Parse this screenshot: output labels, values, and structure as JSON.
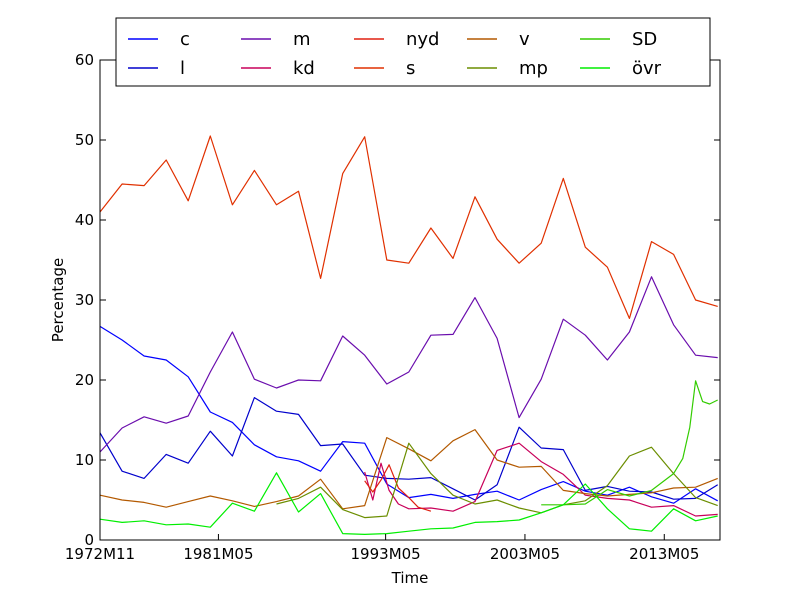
{
  "chart_data": {
    "type": "line",
    "xlabel": "Time",
    "ylabel": "Percentage",
    "ylim": [
      0,
      60
    ],
    "y_ticks": [
      0,
      10,
      20,
      30,
      40,
      50,
      60
    ],
    "x_ticks": [
      "1972M11",
      "1981M05",
      "1993M05",
      "2003M05",
      "2013M05"
    ],
    "x_range": [
      "1972M11",
      "2017M05"
    ],
    "legend_position": "top",
    "series": [
      {
        "name": "c",
        "color": "#0000ff",
        "x": [
          "1972M11",
          "1974M06",
          "1976M01",
          "1977M08",
          "1979M03",
          "1980M10",
          "1982M05",
          "1983M12",
          "1985M07",
          "1987M02",
          "1988M09",
          "1990M04",
          "1991M11",
          "1993M06",
          "1995M01",
          "1996M08",
          "1998M03",
          "1999M10",
          "2001M05",
          "2002M12",
          "2004M07",
          "2006M02",
          "2007M09",
          "2009M04",
          "2010M11",
          "2012M06",
          "2014M01",
          "2015M08",
          "2017M03"
        ],
        "values": [
          26.7,
          25.0,
          23.0,
          22.5,
          20.4,
          16.0,
          14.7,
          11.9,
          10.4,
          9.9,
          8.6,
          12.3,
          12.1,
          7.0,
          5.3,
          5.7,
          5.2,
          5.7,
          6.1,
          5.0,
          6.3,
          7.3,
          6.1,
          5.6,
          6.6,
          5.4,
          4.6,
          6.4,
          4.9
        ]
      },
      {
        "name": "l",
        "color": "#0000cc",
        "x": [
          "1972M11",
          "1974M06",
          "1976M01",
          "1977M08",
          "1979M03",
          "1980M10",
          "1982M05",
          "1983M12",
          "1985M07",
          "1987M02",
          "1988M09",
          "1990M04",
          "1991M11",
          "1993M06",
          "1995M01",
          "1996M08",
          "1998M03",
          "1999M10",
          "2001M05",
          "2002M12",
          "2004M07",
          "2006M02",
          "2007M09",
          "2009M04",
          "2010M11",
          "2012M06",
          "2014M01",
          "2015M08",
          "2017M03"
        ],
        "values": [
          13.4,
          8.6,
          7.7,
          10.7,
          9.6,
          13.6,
          10.5,
          17.8,
          16.1,
          15.7,
          11.8,
          12.0,
          8.1,
          7.7,
          7.6,
          7.8,
          6.4,
          5.0,
          6.9,
          14.1,
          11.5,
          11.3,
          6.2,
          6.7,
          6.1,
          6.0,
          5.1,
          5.2,
          6.9
        ]
      },
      {
        "name": "m",
        "color": "#6a0dad",
        "x": [
          "1972M11",
          "1974M06",
          "1976M01",
          "1977M08",
          "1979M03",
          "1980M10",
          "1982M05",
          "1983M12",
          "1985M07",
          "1987M02",
          "1988M09",
          "1990M04",
          "1991M11",
          "1993M06",
          "1995M01",
          "1996M08",
          "1998M03",
          "1999M10",
          "2001M05",
          "2002M12",
          "2004M07",
          "2006M02",
          "2007M09",
          "2009M04",
          "2010M11",
          "2012M06",
          "2014M01",
          "2015M08",
          "2017M03"
        ],
        "values": [
          11.0,
          14.0,
          15.4,
          14.6,
          15.5,
          21.0,
          26.0,
          20.1,
          19.0,
          20.0,
          19.9,
          25.5,
          23.1,
          19.5,
          21.0,
          25.6,
          25.7,
          30.3,
          25.2,
          15.3,
          20.1,
          27.6,
          25.6,
          22.5,
          26.0,
          32.9,
          26.9,
          23.1,
          22.8
        ]
      },
      {
        "name": "kd",
        "color": "#c8005a",
        "x": [
          "1991M11",
          "1992M06",
          "1993M01",
          "1993M08",
          "1994M04",
          "1995M01",
          "1996M08",
          "1998M03",
          "1999M10",
          "2001M05",
          "2002M12",
          "2004M07",
          "2006M02",
          "2007M09",
          "2009M04",
          "2010M11",
          "2012M06",
          "2014M01",
          "2015M08",
          "2017M03"
        ],
        "values": [
          8.5,
          5.0,
          9.6,
          6.2,
          4.5,
          3.9,
          4.0,
          3.6,
          4.8,
          11.2,
          12.1,
          9.8,
          8.2,
          5.6,
          5.2,
          5.0,
          4.1,
          4.3,
          3.0,
          3.2
        ]
      },
      {
        "name": "nyd",
        "color": "#e02010",
        "x": [
          "1991M11",
          "1992M06",
          "1993M01",
          "1993M08",
          "1994M04",
          "1995M01",
          "1995M09",
          "1996M08"
        ],
        "values": [
          7.4,
          6.0,
          7.5,
          9.4,
          6.5,
          5.3,
          4.1,
          3.6
        ]
      },
      {
        "name": "s",
        "color": "#e03000",
        "x": [
          "1972M11",
          "1974M06",
          "1976M01",
          "1977M08",
          "1979M03",
          "1980M10",
          "1982M05",
          "1983M12",
          "1985M07",
          "1987M02",
          "1988M09",
          "1990M04",
          "1991M11",
          "1993M06",
          "1995M01",
          "1996M08",
          "1998M03",
          "1999M10",
          "2001M05",
          "2002M12",
          "2004M07",
          "2006M02",
          "2007M09",
          "2009M04",
          "2010M11",
          "2012M06",
          "2014M01",
          "2015M08",
          "2017M03"
        ],
        "values": [
          41.0,
          44.5,
          44.3,
          47.5,
          42.4,
          50.5,
          41.9,
          46.2,
          41.9,
          43.6,
          32.7,
          45.8,
          50.4,
          35.0,
          34.6,
          39.0,
          35.2,
          42.9,
          37.6,
          34.6,
          37.1,
          45.2,
          36.6,
          34.1,
          27.7,
          37.3,
          35.7,
          30.0,
          29.2
        ]
      },
      {
        "name": "v",
        "color": "#b35900",
        "x": [
          "1972M11",
          "1974M06",
          "1976M01",
          "1977M08",
          "1979M03",
          "1980M10",
          "1982M05",
          "1983M12",
          "1985M07",
          "1987M02",
          "1988M09",
          "1990M04",
          "1991M11",
          "1993M06",
          "1995M01",
          "1996M08",
          "1998M03",
          "1999M10",
          "2001M05",
          "2002M12",
          "2004M07",
          "2006M02",
          "2007M09",
          "2009M04",
          "2010M11",
          "2012M06",
          "2014M01",
          "2015M08",
          "2017M03"
        ],
        "values": [
          5.6,
          5.0,
          4.7,
          4.1,
          4.8,
          5.5,
          4.9,
          4.2,
          4.8,
          5.5,
          7.6,
          3.9,
          4.3,
          12.8,
          11.4,
          9.9,
          12.4,
          13.8,
          10.0,
          9.1,
          9.2,
          6.2,
          5.8,
          5.5,
          5.7,
          5.9,
          6.5,
          6.6,
          7.7
        ]
      },
      {
        "name": "mp",
        "color": "#6b8e00",
        "x": [
          "1985M07",
          "1987M02",
          "1988M09",
          "1990M04",
          "1991M11",
          "1993M06",
          "1995M01",
          "1996M08",
          "1998M03",
          "1999M10",
          "2001M05",
          "2002M12",
          "2004M07",
          "2006M02",
          "2007M09",
          "2009M04",
          "2010M11",
          "2012M06",
          "2014M01",
          "2015M08",
          "2017M03"
        ],
        "values": [
          4.5,
          5.2,
          6.6,
          3.8,
          2.8,
          3.0,
          12.1,
          8.3,
          5.6,
          4.5,
          5.0,
          4.0,
          3.4,
          4.4,
          4.9,
          6.8,
          10.5,
          11.6,
          8.3,
          5.3,
          4.3
        ]
      },
      {
        "name": "SD",
        "color": "#33cc00",
        "x": [
          "2004M07",
          "2006M02",
          "2007M09",
          "2009M04",
          "2010M11",
          "2012M06",
          "2014M01",
          "2014M09",
          "2015M03",
          "2015M08",
          "2016M02",
          "2016M08",
          "2017M03"
        ],
        "values": [
          4.4,
          4.4,
          4.5,
          6.3,
          5.5,
          6.2,
          8.3,
          10.2,
          14.1,
          19.9,
          17.3,
          17.0,
          17.5
        ]
      },
      {
        "name": "övr",
        "color": "#00ee00",
        "x": [
          "1972M11",
          "1974M06",
          "1976M01",
          "1977M08",
          "1979M03",
          "1980M10",
          "1982M05",
          "1983M12",
          "1985M07",
          "1987M02",
          "1988M09",
          "1990M04",
          "1991M11",
          "1993M06",
          "1995M01",
          "1996M08",
          "1998M03",
          "1999M10",
          "2001M05",
          "2002M12",
          "2004M07",
          "2006M02",
          "2007M09",
          "2009M04",
          "2010M11",
          "2012M06",
          "2014M01",
          "2015M08",
          "2017M03"
        ],
        "values": [
          2.6,
          2.2,
          2.4,
          1.9,
          2.0,
          1.6,
          4.6,
          3.6,
          8.4,
          3.5,
          5.8,
          0.8,
          0.7,
          0.8,
          1.1,
          1.4,
          1.5,
          2.2,
          2.3,
          2.5,
          3.4,
          4.4,
          7.0,
          3.9,
          1.4,
          1.1,
          3.9,
          2.4,
          3.0
        ]
      }
    ]
  }
}
